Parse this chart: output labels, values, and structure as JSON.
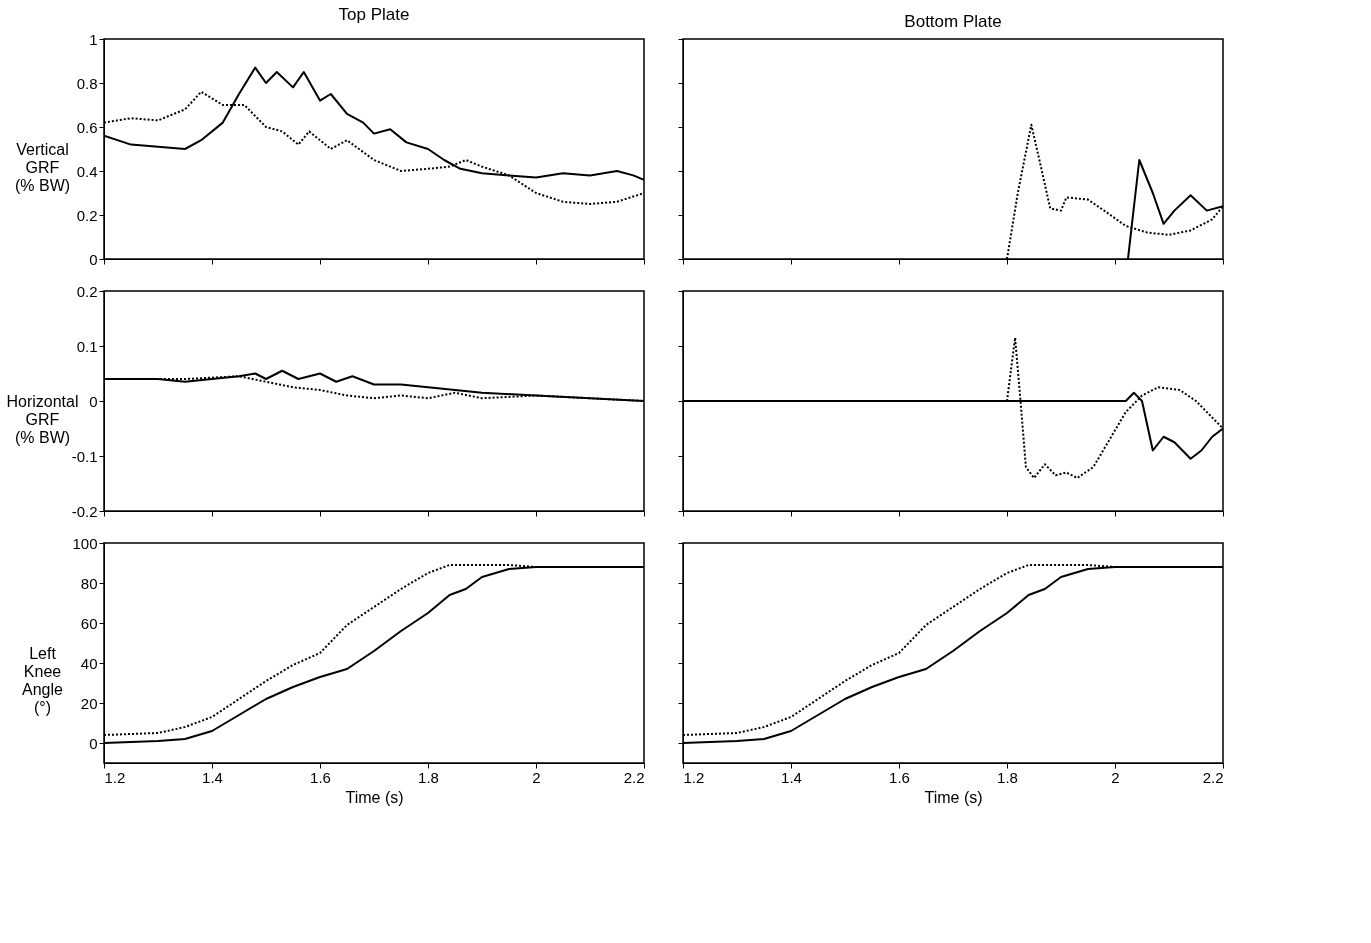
{
  "chart_data": [
    {
      "type": "line",
      "title": "Top Plate",
      "ylabel": "Vertical\nGRF\n(% BW)",
      "xlim": [
        1.2,
        2.2
      ],
      "xticks": [
        1.2,
        1.4,
        1.6,
        1.8,
        2,
        2.2
      ],
      "ylim": [
        0,
        1
      ],
      "yticks": [
        0,
        0.2,
        0.4,
        0.6,
        0.8,
        1
      ],
      "tick_labels": "y",
      "grid": false,
      "series": [
        {
          "color": "#000000",
          "line_style": "solid",
          "x": [
            1.2,
            1.25,
            1.3,
            1.35,
            1.38,
            1.42,
            1.45,
            1.48,
            1.5,
            1.52,
            1.55,
            1.57,
            1.6,
            1.62,
            1.65,
            1.68,
            1.7,
            1.73,
            1.76,
            1.8,
            1.83,
            1.86,
            1.9,
            1.95,
            2.0,
            2.05,
            2.1,
            2.15,
            2.18,
            2.2
          ],
          "values": [
            0.56,
            0.52,
            0.51,
            0.5,
            0.54,
            0.62,
            0.75,
            0.87,
            0.8,
            0.85,
            0.78,
            0.85,
            0.72,
            0.75,
            0.66,
            0.62,
            0.57,
            0.59,
            0.53,
            0.5,
            0.45,
            0.41,
            0.39,
            0.38,
            0.37,
            0.39,
            0.38,
            0.4,
            0.38,
            0.36
          ]
        },
        {
          "color": "#000000",
          "line_style": "dotted",
          "x": [
            1.2,
            1.25,
            1.3,
            1.35,
            1.38,
            1.42,
            1.46,
            1.5,
            1.53,
            1.56,
            1.58,
            1.62,
            1.65,
            1.7,
            1.75,
            1.8,
            1.84,
            1.87,
            1.9,
            1.95,
            2.0,
            2.05,
            2.1,
            2.15,
            2.2
          ],
          "values": [
            0.62,
            0.64,
            0.63,
            0.68,
            0.76,
            0.7,
            0.7,
            0.6,
            0.58,
            0.52,
            0.58,
            0.5,
            0.54,
            0.45,
            0.4,
            0.41,
            0.42,
            0.45,
            0.42,
            0.38,
            0.3,
            0.26,
            0.25,
            0.26,
            0.3
          ]
        }
      ]
    },
    {
      "type": "line",
      "title": "Bottom Plate",
      "xlim": [
        1.2,
        2.2
      ],
      "xticks": [
        1.2,
        1.4,
        1.6,
        1.8,
        2,
        2.2
      ],
      "ylim": [
        0,
        1
      ],
      "yticks": [
        0,
        0.2,
        0.4,
        0.6,
        0.8,
        1
      ],
      "tick_labels": false,
      "grid": false,
      "series": [
        {
          "color": "#000000",
          "line_style": "solid",
          "x": [
            2.024,
            2.045,
            2.07,
            2.09,
            2.11,
            2.14,
            2.17,
            2.2
          ],
          "values": [
            0,
            0.45,
            0.3,
            0.16,
            0.22,
            0.29,
            0.22,
            0.24
          ]
        },
        {
          "color": "#000000",
          "line_style": "dotted",
          "x": [
            1.8,
            1.82,
            1.845,
            1.86,
            1.88,
            1.9,
            1.91,
            1.95,
            1.98,
            2.02,
            2.06,
            2.1,
            2.14,
            2.18,
            2.2
          ],
          "values": [
            0,
            0.3,
            0.61,
            0.45,
            0.23,
            0.22,
            0.28,
            0.27,
            0.22,
            0.15,
            0.12,
            0.11,
            0.13,
            0.18,
            0.24
          ]
        }
      ]
    },
    {
      "type": "line",
      "ylabel": "Horizontal\nGRF\n(% BW)",
      "xlim": [
        1.2,
        2.2
      ],
      "xticks": [
        1.2,
        1.4,
        1.6,
        1.8,
        2,
        2.2
      ],
      "ylim": [
        -0.2,
        0.2
      ],
      "yticks": [
        -0.2,
        -0.1,
        0,
        0.1,
        0.2
      ],
      "tick_labels": "y",
      "grid": false,
      "series": [
        {
          "color": "#000000",
          "line_style": "solid",
          "x": [
            1.2,
            1.3,
            1.35,
            1.45,
            1.48,
            1.5,
            1.53,
            1.56,
            1.6,
            1.63,
            1.66,
            1.7,
            1.75,
            1.8,
            1.85,
            1.9,
            2.0,
            2.1,
            2.2
          ],
          "values": [
            0.04,
            0.04,
            0.035,
            0.045,
            0.05,
            0.04,
            0.055,
            0.04,
            0.05,
            0.035,
            0.045,
            0.03,
            0.03,
            0.025,
            0.02,
            0.015,
            0.01,
            0.005,
            0
          ]
        },
        {
          "color": "#000000",
          "line_style": "dotted",
          "x": [
            1.2,
            1.35,
            1.45,
            1.5,
            1.55,
            1.6,
            1.65,
            1.7,
            1.75,
            1.8,
            1.85,
            1.9,
            2.0,
            2.1,
            2.2
          ],
          "values": [
            0.04,
            0.04,
            0.045,
            0.035,
            0.025,
            0.02,
            0.01,
            0.005,
            0.01,
            0.005,
            0.015,
            0.005,
            0.01,
            0.005,
            0
          ]
        }
      ]
    },
    {
      "type": "line",
      "xlim": [
        1.2,
        2.2
      ],
      "xticks": [
        1.2,
        1.4,
        1.6,
        1.8,
        2,
        2.2
      ],
      "ylim": [
        -0.2,
        0.2
      ],
      "yticks": [
        -0.2,
        -0.1,
        0,
        0.1,
        0.2
      ],
      "tick_labels": false,
      "grid": false,
      "series": [
        {
          "color": "#000000",
          "line_style": "solid",
          "x": [
            1.2,
            2.02,
            2.035,
            2.05,
            2.07,
            2.09,
            2.11,
            2.14,
            2.16,
            2.18,
            2.2
          ],
          "values": [
            0,
            0,
            0.015,
            0,
            -0.09,
            -0.065,
            -0.075,
            -0.105,
            -0.09,
            -0.065,
            -0.05
          ]
        },
        {
          "color": "#000000",
          "line_style": "dotted",
          "x": [
            1.2,
            1.8,
            1.815,
            1.825,
            1.835,
            1.85,
            1.87,
            1.89,
            1.91,
            1.93,
            1.96,
            1.99,
            2.02,
            2.05,
            2.08,
            2.12,
            2.15,
            2.18,
            2.2
          ],
          "values": [
            0,
            0,
            0.115,
            0,
            -0.12,
            -0.14,
            -0.115,
            -0.135,
            -0.13,
            -0.14,
            -0.12,
            -0.07,
            -0.02,
            0.01,
            0.025,
            0.02,
            0,
            -0.03,
            -0.05
          ]
        }
      ]
    },
    {
      "type": "line",
      "ylabel": "Left\nKnee\nAngle\n(°)",
      "xlabel": "Time (s)",
      "xlim": [
        1.2,
        2.2
      ],
      "xticks": [
        1.2,
        1.4,
        1.6,
        1.8,
        2,
        2.2
      ],
      "ylim": [
        -10,
        100
      ],
      "yticks": [
        0,
        20,
        40,
        60,
        80,
        100
      ],
      "grid": false,
      "series": [
        {
          "color": "#000000",
          "line_style": "solid",
          "x": [
            1.2,
            1.3,
            1.35,
            1.4,
            1.45,
            1.5,
            1.55,
            1.6,
            1.65,
            1.7,
            1.75,
            1.8,
            1.84,
            1.87,
            1.9,
            1.95,
            2.0,
            2.2
          ],
          "values": [
            0,
            1,
            2,
            6,
            14,
            22,
            28,
            33,
            37,
            46,
            56,
            65,
            74,
            77,
            83,
            87,
            88,
            88
          ]
        },
        {
          "color": "#000000",
          "line_style": "dotted",
          "x": [
            1.2,
            1.3,
            1.35,
            1.4,
            1.45,
            1.5,
            1.55,
            1.6,
            1.65,
            1.7,
            1.75,
            1.8,
            1.84,
            1.95,
            2.0,
            2.2
          ],
          "values": [
            4,
            5,
            8,
            13,
            22,
            31,
            39,
            45,
            59,
            68,
            77,
            85,
            89,
            89,
            88,
            88
          ]
        }
      ]
    },
    {
      "type": "line",
      "xlabel": "Time (s)",
      "xlim": [
        1.2,
        2.2
      ],
      "xticks": [
        1.2,
        1.4,
        1.6,
        1.8,
        2,
        2.2
      ],
      "ylim": [
        -10,
        100
      ],
      "yticks": [
        0,
        20,
        40,
        60,
        80,
        100
      ],
      "tick_labels": "x",
      "grid": false,
      "series": [
        {
          "color": "#000000",
          "line_style": "solid",
          "x": [
            1.2,
            1.3,
            1.35,
            1.4,
            1.45,
            1.5,
            1.55,
            1.6,
            1.65,
            1.7,
            1.75,
            1.8,
            1.84,
            1.87,
            1.9,
            1.95,
            2.0,
            2.2
          ],
          "values": [
            0,
            1,
            2,
            6,
            14,
            22,
            28,
            33,
            37,
            46,
            56,
            65,
            74,
            77,
            83,
            87,
            88,
            88
          ]
        },
        {
          "color": "#000000",
          "line_style": "dotted",
          "x": [
            1.2,
            1.3,
            1.35,
            1.4,
            1.45,
            1.5,
            1.55,
            1.6,
            1.65,
            1.7,
            1.75,
            1.8,
            1.84,
            1.95,
            2.0,
            2.2
          ],
          "values": [
            4,
            5,
            8,
            13,
            22,
            31,
            39,
            45,
            59,
            68,
            77,
            85,
            89,
            89,
            88,
            88
          ]
        }
      ]
    }
  ]
}
